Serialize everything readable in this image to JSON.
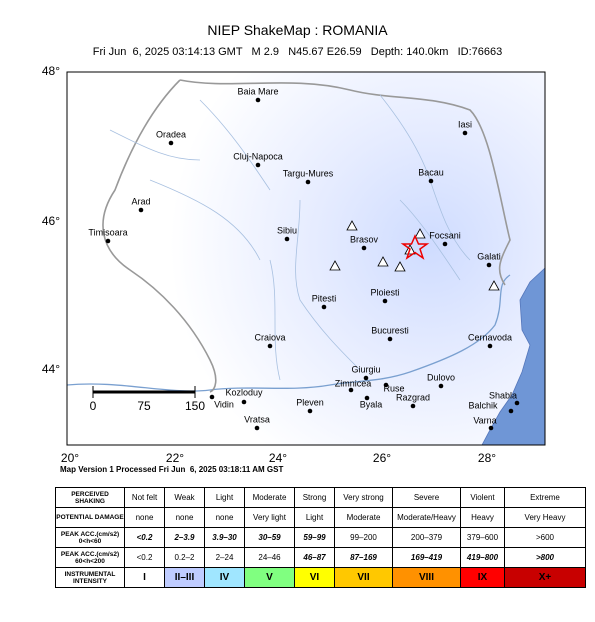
{
  "header": {
    "title": "NIEP ShakeMap : ROMANIA",
    "subtitle": "Fri Jun  6, 2025 03:14:13 GMT   M 2.9   N45.67 E26.59   Depth: 140.0km   ID:76663"
  },
  "map": {
    "lat_labels": [
      "48°",
      "46°",
      "44°"
    ],
    "lon_labels": [
      "20°",
      "22°",
      "24°",
      "26°",
      "28°"
    ],
    "scale_labels": [
      "0",
      "75",
      "150"
    ],
    "places": [
      "Baia Mare",
      "Oradea",
      "Cluj-Napoca",
      "Targu-Mures",
      "Iasi",
      "Bacau",
      "Arad",
      "Timisoara",
      "Sibiu",
      "Brasov",
      "Focsani",
      "Galati",
      "Pitesti",
      "Ploiesti",
      "Bucuresti",
      "Craiova",
      "Cernavoda",
      "Giurgiu",
      "Dulovo",
      "Kozloduy",
      "Vidin",
      "Zimnicea",
      "Ruse",
      "Shabla",
      "Razgrad",
      "Pleven",
      "Byala",
      "Balchik",
      "Varna",
      "Vratsa"
    ]
  },
  "footer": "Map Version 1 Processed Fri Jun  6, 2025 03:18:11 AM GST",
  "legend": {
    "rows": [
      [
        "PERCEIVED SHAKING",
        "Not felt",
        "Weak",
        "Light",
        "Moderate",
        "Strong",
        "Very strong",
        "Severe",
        "Violent",
        "Extreme"
      ],
      [
        "POTENTIAL DAMAGE",
        "none",
        "none",
        "none",
        "Very light",
        "Light",
        "Moderate",
        "Moderate/Heavy",
        "Heavy",
        "Very Heavy"
      ],
      [
        "PEAK ACC.(cm/s2) 0<h<60",
        "<0.2",
        "2–3.9",
        "3.9–30",
        "30–59",
        "59–99",
        "99–200",
        "200–379",
        "379–600",
        ">600"
      ],
      [
        "PEAK ACC.(cm/s2) 60<h<200",
        "<0.2",
        "0.2–2",
        "2–24",
        "24–46",
        "46–87",
        "87–169",
        "169–419",
        "419–800",
        ">800"
      ],
      [
        "INSTRUMENTAL INTENSITY",
        "I",
        "II–III",
        "IV",
        "V",
        "VI",
        "VII",
        "VIII",
        "IX",
        "X+"
      ]
    ]
  }
}
